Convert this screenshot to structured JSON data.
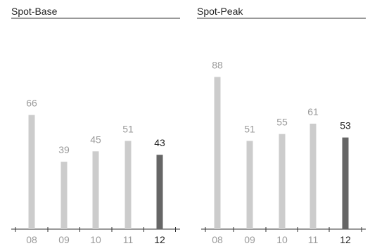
{
  "chart_data": [
    {
      "type": "bar",
      "title": "Spot-Base",
      "categories": [
        "08",
        "09",
        "10",
        "11",
        "12"
      ],
      "values": [
        66,
        39,
        45,
        51,
        43
      ],
      "ylim": [
        0,
        100
      ],
      "grid": false,
      "highlight_index": 4
    },
    {
      "type": "bar",
      "title": "Spot-Peak",
      "categories": [
        "08",
        "09",
        "10",
        "11",
        "12"
      ],
      "values": [
        88,
        51,
        55,
        61,
        53
      ],
      "ylim": [
        0,
        100
      ],
      "grid": false,
      "highlight_index": 4
    }
  ],
  "colors": {
    "bar": "#cccccc",
    "bar_highlight": "#666666",
    "label": "#9a9a9a",
    "label_highlight": "#222222",
    "axis": "#333333"
  }
}
